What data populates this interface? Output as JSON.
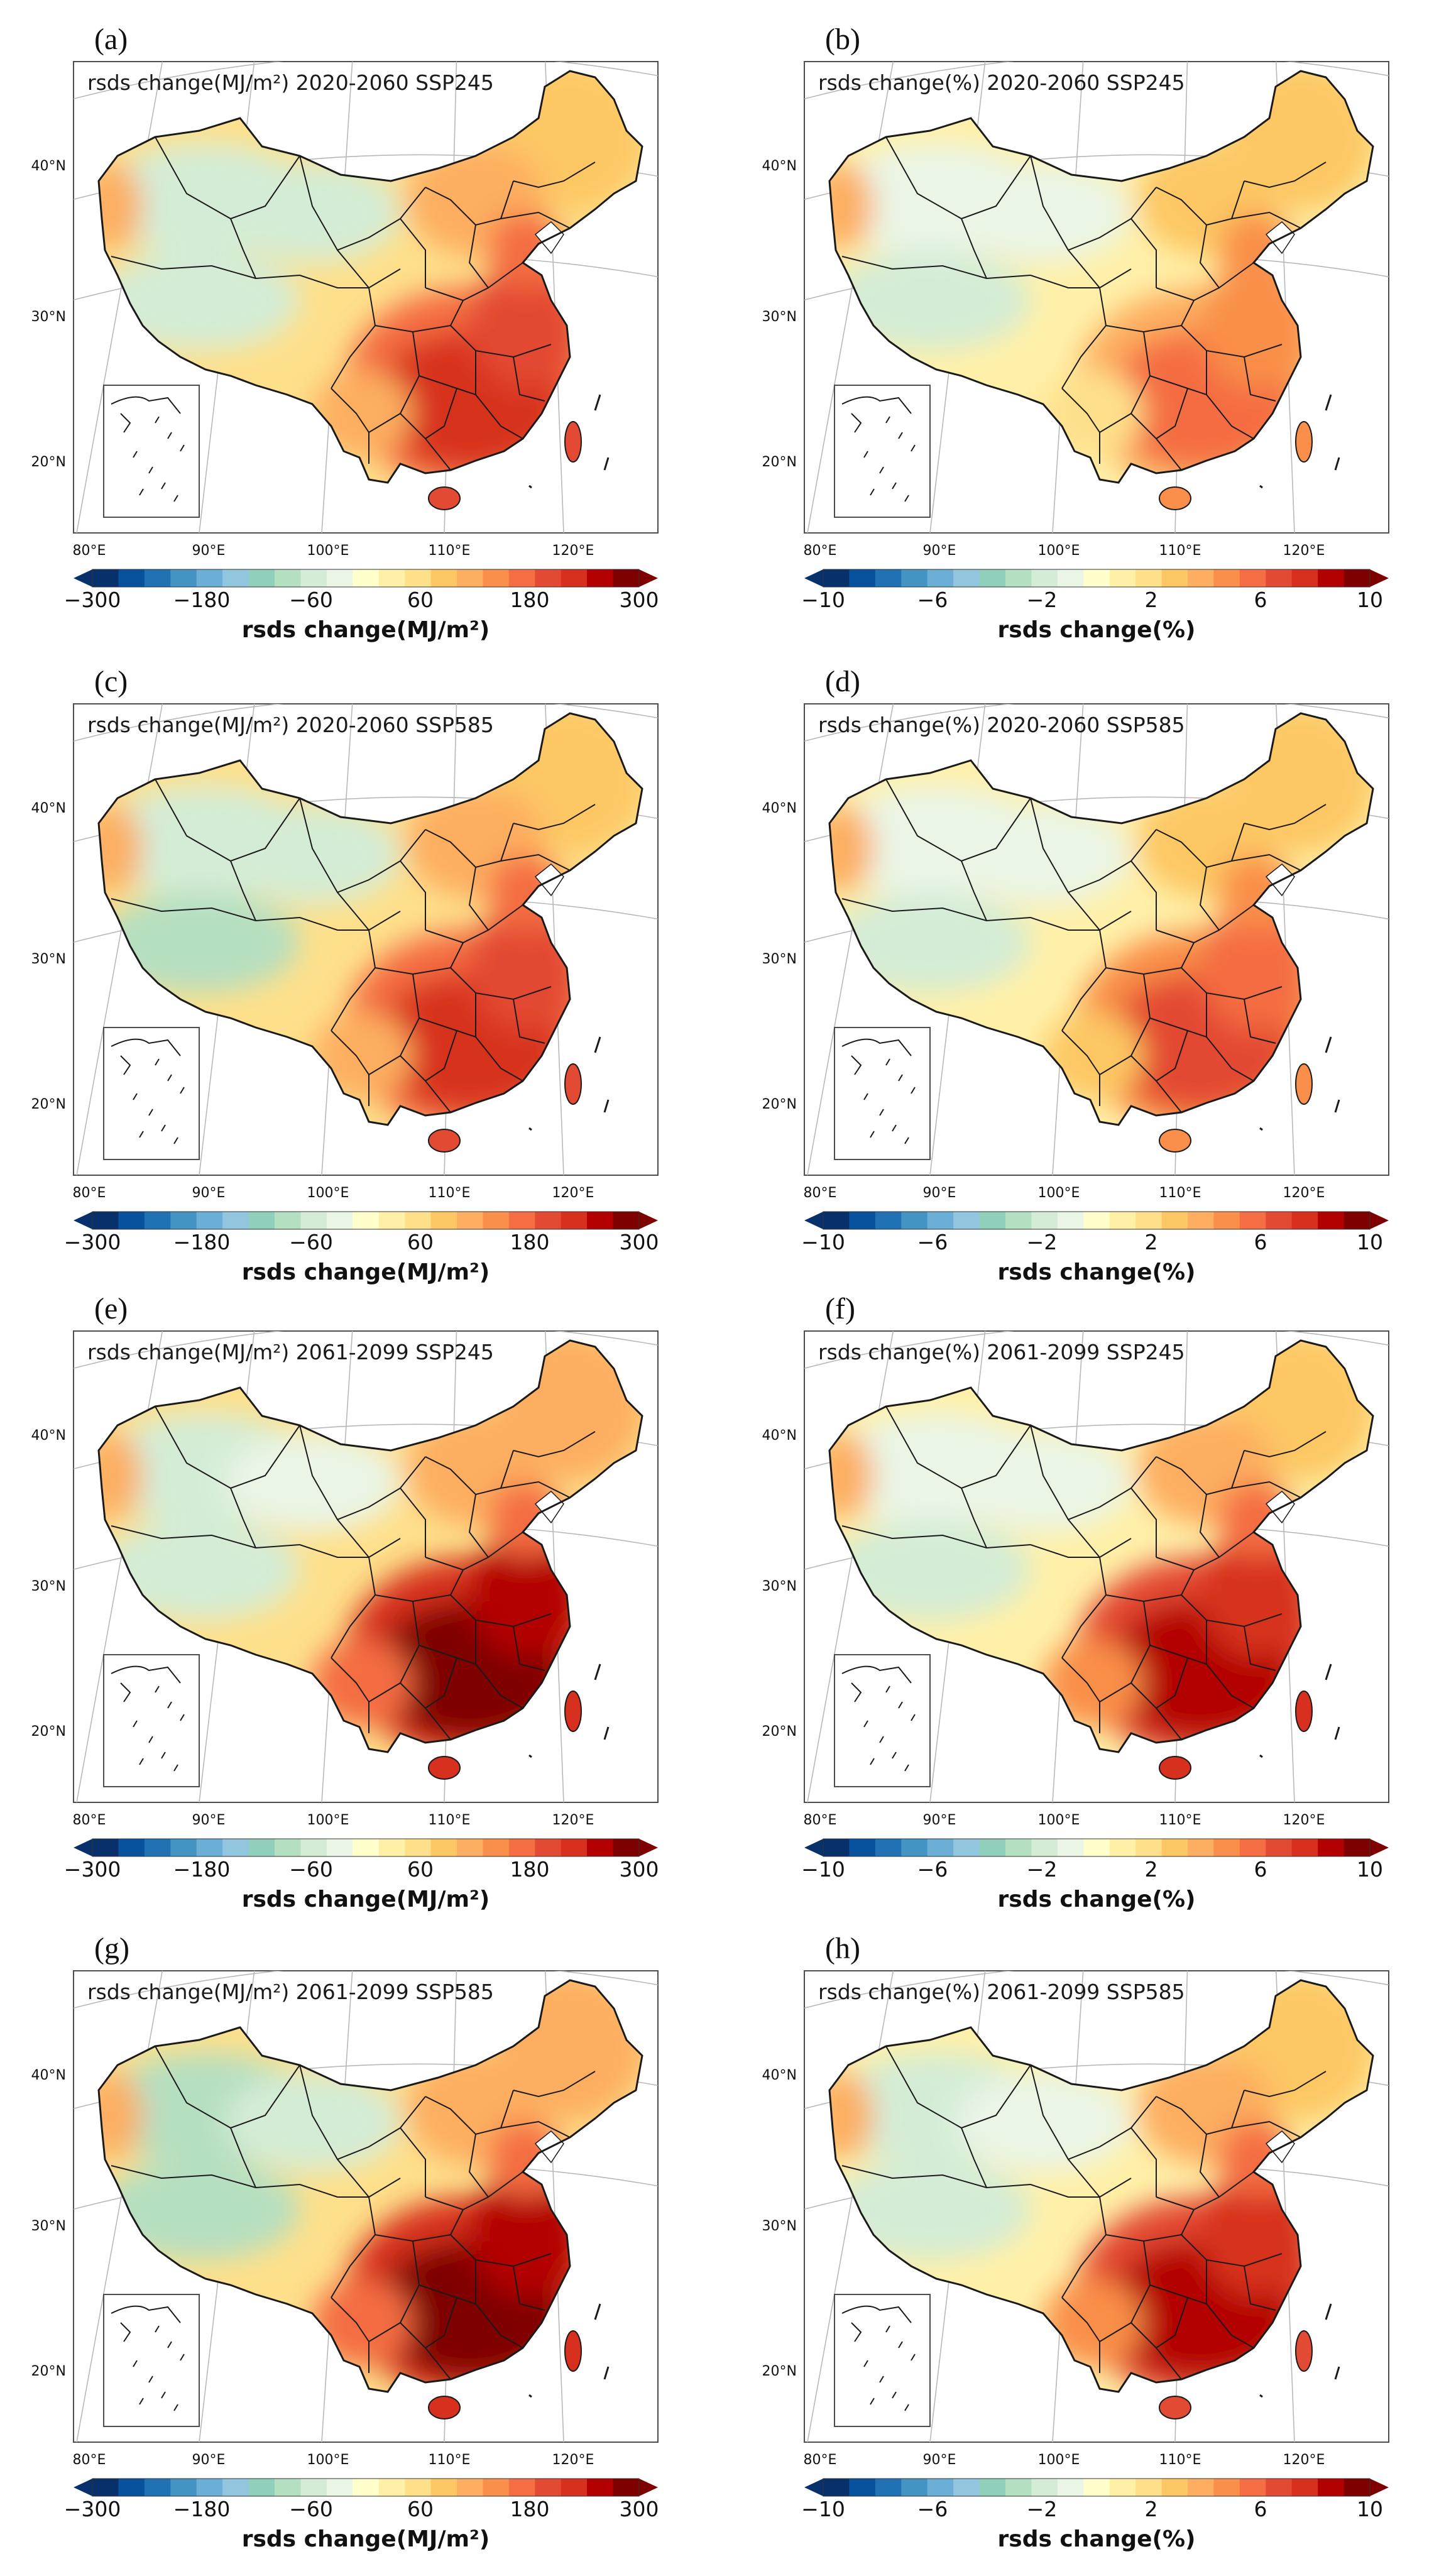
{
  "figure": {
    "panels": [
      {
        "letter": "(a)",
        "title": "rsds change(MJ/m²) 2020-2060 SSP245",
        "scale": "abs",
        "intensity": 0.78,
        "west_anomaly": 0.3
      },
      {
        "letter": "(b)",
        "title": "rsds change(%) 2020-2060 SSP245",
        "scale": "pct",
        "intensity": 0.55,
        "west_anomaly": 0.15
      },
      {
        "letter": "(c)",
        "title": "rsds change(MJ/m²) 2020-2060 SSP585",
        "scale": "abs",
        "intensity": 0.8,
        "west_anomaly": 0.4
      },
      {
        "letter": "(d)",
        "title": "rsds change(%) 2020-2060 SSP585",
        "scale": "pct",
        "intensity": 0.58,
        "west_anomaly": 0.15
      },
      {
        "letter": "(e)",
        "title": "rsds change(MJ/m²) 2061-2099 SSP245",
        "scale": "abs",
        "intensity": 1.0,
        "west_anomaly": 0.25
      },
      {
        "letter": "(f)",
        "title": "rsds change(%) 2061-2099 SSP245",
        "scale": "pct",
        "intensity": 0.92,
        "west_anomaly": 0.15
      },
      {
        "letter": "(g)",
        "title": "rsds change(MJ/m²) 2061-2099 SSP585",
        "scale": "abs",
        "intensity": 1.0,
        "west_anomaly": 0.65
      },
      {
        "letter": "(h)",
        "title": "rsds change(%) 2061-2099 SSP585",
        "scale": "pct",
        "intensity": 0.9,
        "west_anomaly": 0.25
      }
    ],
    "lat_labels": [
      "40°N",
      "30°N",
      "20°N"
    ],
    "lon_labels": [
      "80°E",
      "90°E",
      "100°E",
      "110°E",
      "120°E"
    ],
    "colorbars": {
      "abs": {
        "label": "rsds change(MJ/m²)",
        "ticks": [
          "−300",
          "−180",
          "−60",
          "60",
          "180",
          "300"
        ]
      },
      "pct": {
        "label": "rsds change(%)",
        "ticks": [
          "−10",
          "−6",
          "−2",
          "2",
          "6",
          "10"
        ]
      }
    },
    "colors": {
      "palette": [
        "#08306b",
        "#08519c",
        "#2171b5",
        "#4393c3",
        "#6baed6",
        "#92c5de",
        "#8fcfbb",
        "#b5dfc1",
        "#d4ecd6",
        "#eaf5e6",
        "#ffffcc",
        "#fff0a8",
        "#fee08b",
        "#fdc764",
        "#fdae61",
        "#f98f4a",
        "#f46d43",
        "#e34a33",
        "#d7301f",
        "#b30000",
        "#7f0000"
      ],
      "map_frame": "#4d4d4d",
      "graticule": "#b8b8b8",
      "border": "#1a1a1a",
      "lake": "#ffffff"
    }
  }
}
